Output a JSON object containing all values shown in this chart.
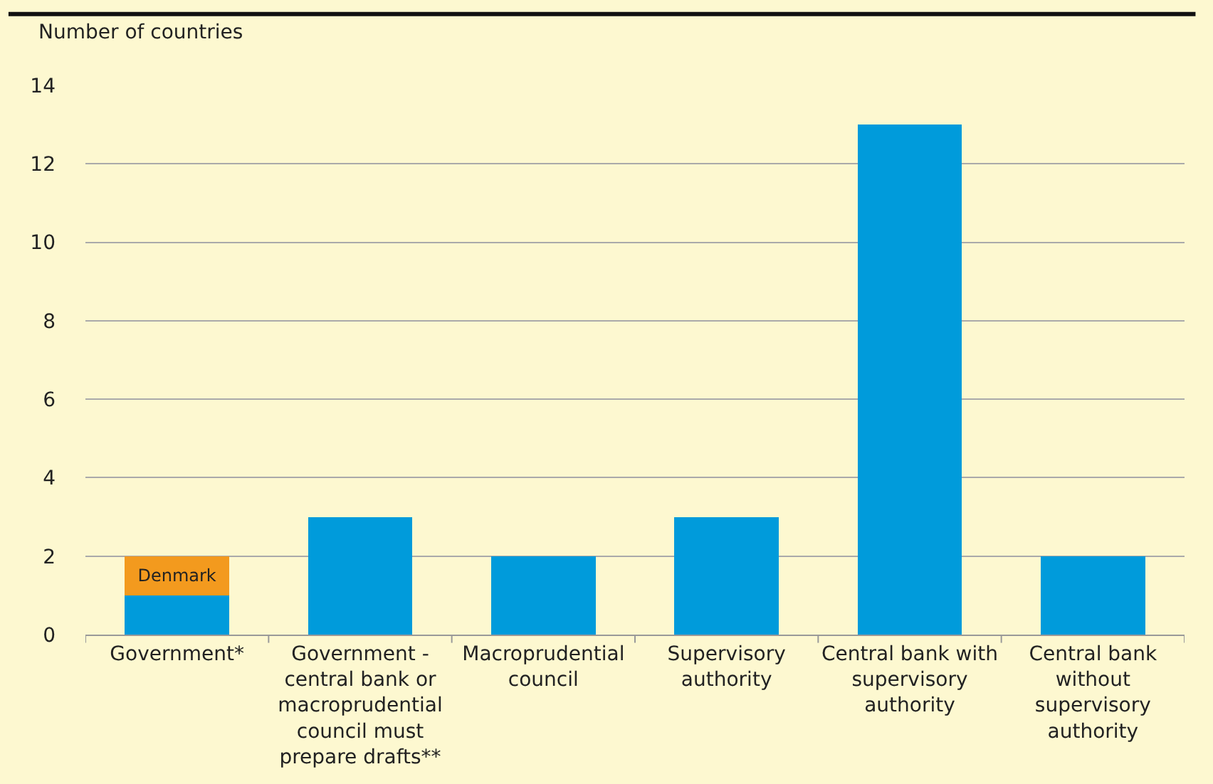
{
  "chart_data": {
    "type": "bar",
    "stacked": true,
    "ylabel": "Number of countries",
    "categories": [
      "Government*",
      "Government - central bank or macroprudential council must prepare drafts**",
      "Macroprudential council",
      "Supervisory authority",
      "Central bank with supervisory authority",
      "Central bank without supervisory authority"
    ],
    "series": [
      {
        "color": "#009bdb",
        "values": [
          1,
          3,
          2,
          3,
          13,
          2
        ]
      },
      {
        "name": "Denmark",
        "color": "#f39a1e",
        "values": [
          1,
          null,
          null,
          null,
          null,
          null
        ]
      }
    ],
    "ylim": [
      0,
      14
    ],
    "yticks": [
      0,
      2,
      4,
      6,
      8,
      10,
      12,
      14
    ],
    "grid": "y",
    "legend": false
  }
}
